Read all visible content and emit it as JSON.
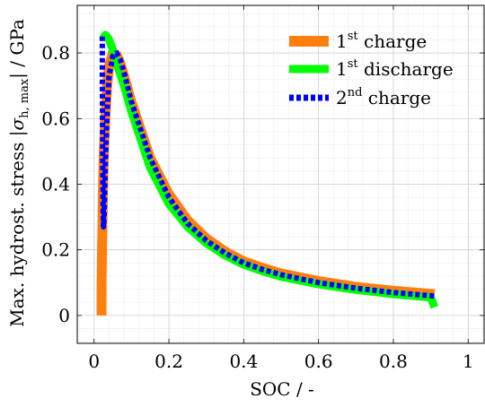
{
  "chart_data": {
    "type": "line",
    "title": "",
    "xlabel": "SOC / -",
    "ylabel_parts": {
      "main": "Max. hydrost. stress |",
      "sigma": "σ",
      "sub": "h, max",
      "tail": "| / GPa"
    },
    "xlim": [
      -0.045,
      1.045
    ],
    "ylim": [
      -0.085,
      0.945
    ],
    "xticks": [
      0,
      0.2,
      0.4,
      0.6,
      0.8,
      1
    ],
    "xtick_labels": [
      "0",
      "0.2",
      "0.4",
      "0.6",
      "0.8",
      "1"
    ],
    "yticks": [
      0,
      0.2,
      0.4,
      0.6,
      0.8
    ],
    "ytick_labels": [
      "0",
      "0.2",
      "0.4",
      "0.6",
      "0.8"
    ],
    "grid": true,
    "minor_grid": true,
    "legend_position": "top-right",
    "series": [
      {
        "name": "charge",
        "legend_base": "1",
        "legend_sup": "st",
        "legend_rest": " charge",
        "color": "#ff7f0e",
        "style": "solid",
        "x": [
          0.02,
          0.02,
          0.022,
          0.024,
          0.026,
          0.03,
          0.035,
          0.04,
          0.05,
          0.06,
          0.07,
          0.08,
          0.1,
          0.15,
          0.2,
          0.25,
          0.3,
          0.35,
          0.4,
          0.45,
          0.5,
          0.6,
          0.7,
          0.8,
          0.9,
          0.91
        ],
        "y": [
          0.0,
          0.1,
          0.25,
          0.4,
          0.5,
          0.6,
          0.7,
          0.76,
          0.8,
          0.795,
          0.77,
          0.73,
          0.65,
          0.48,
          0.37,
          0.29,
          0.235,
          0.195,
          0.165,
          0.145,
          0.128,
          0.105,
          0.087,
          0.075,
          0.066,
          0.065
        ]
      },
      {
        "name": "discharge",
        "legend_base": "1",
        "legend_sup": "st",
        "legend_rest": " discharge",
        "color": "#00ff00",
        "style": "solid",
        "x": [
          0.91,
          0.905,
          0.9,
          0.8,
          0.7,
          0.6,
          0.5,
          0.45,
          0.4,
          0.35,
          0.3,
          0.25,
          0.2,
          0.15,
          0.1,
          0.08,
          0.06,
          0.05,
          0.04,
          0.035,
          0.03,
          0.027,
          0.025,
          0.024
        ],
        "y": [
          0.025,
          0.04,
          0.055,
          0.065,
          0.078,
          0.095,
          0.118,
          0.135,
          0.155,
          0.183,
          0.22,
          0.27,
          0.34,
          0.45,
          0.62,
          0.7,
          0.77,
          0.81,
          0.84,
          0.85,
          0.855,
          0.85,
          0.845,
          0.84
        ]
      },
      {
        "name": "2nd charge",
        "legend_base": "2",
        "legend_sup": "nd",
        "legend_rest": " charge",
        "color": "#0000ff",
        "style": "dotted",
        "x": [
          0.022,
          0.022,
          0.023,
          0.024,
          0.025,
          0.027,
          0.03,
          0.035,
          0.04,
          0.05,
          0.06,
          0.07,
          0.08,
          0.1,
          0.15,
          0.2,
          0.25,
          0.3,
          0.35,
          0.4,
          0.45,
          0.5,
          0.6,
          0.7,
          0.8,
          0.9,
          0.91
        ],
        "y": [
          0.85,
          0.72,
          0.5,
          0.35,
          0.27,
          0.3,
          0.45,
          0.62,
          0.73,
          0.79,
          0.8,
          0.78,
          0.74,
          0.65,
          0.48,
          0.36,
          0.28,
          0.228,
          0.19,
          0.16,
          0.14,
          0.124,
          0.1,
          0.083,
          0.07,
          0.06,
          0.059
        ]
      }
    ]
  }
}
